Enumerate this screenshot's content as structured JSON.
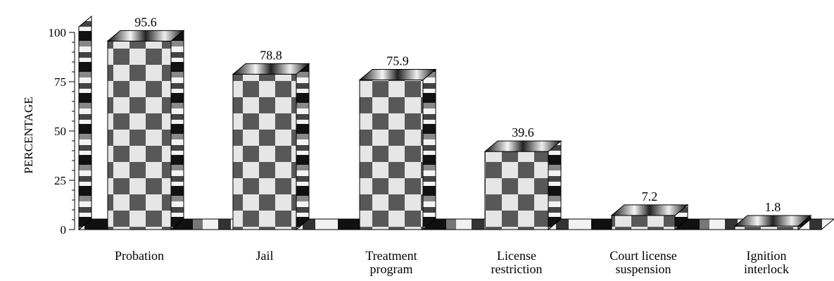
{
  "chart_data": {
    "type": "bar",
    "ylabel": "PERCENTAGE",
    "ylim": [
      0,
      100
    ],
    "yticks": [
      0,
      25,
      50,
      75,
      100
    ],
    "categories": [
      [
        "Probation"
      ],
      [
        "Jail"
      ],
      [
        "Treatment",
        "program"
      ],
      [
        "License",
        "restriction"
      ],
      [
        "Court license",
        "suspension"
      ],
      [
        "Ignition",
        "interlock"
      ]
    ],
    "values": [
      95.6,
      78.8,
      75.9,
      39.6,
      7.2,
      1.8
    ],
    "value_labels": [
      "95.6",
      "78.8",
      "75.9",
      "39.6",
      "7.2",
      "1.8"
    ],
    "style": {
      "three_d": true,
      "bar_fill": "checkerboard",
      "checker_dark": "#555555",
      "checker_light": "#cfcfcf",
      "side_dark": "#111111",
      "side_light": "#f2f2f2",
      "outline": "#000000"
    }
  }
}
